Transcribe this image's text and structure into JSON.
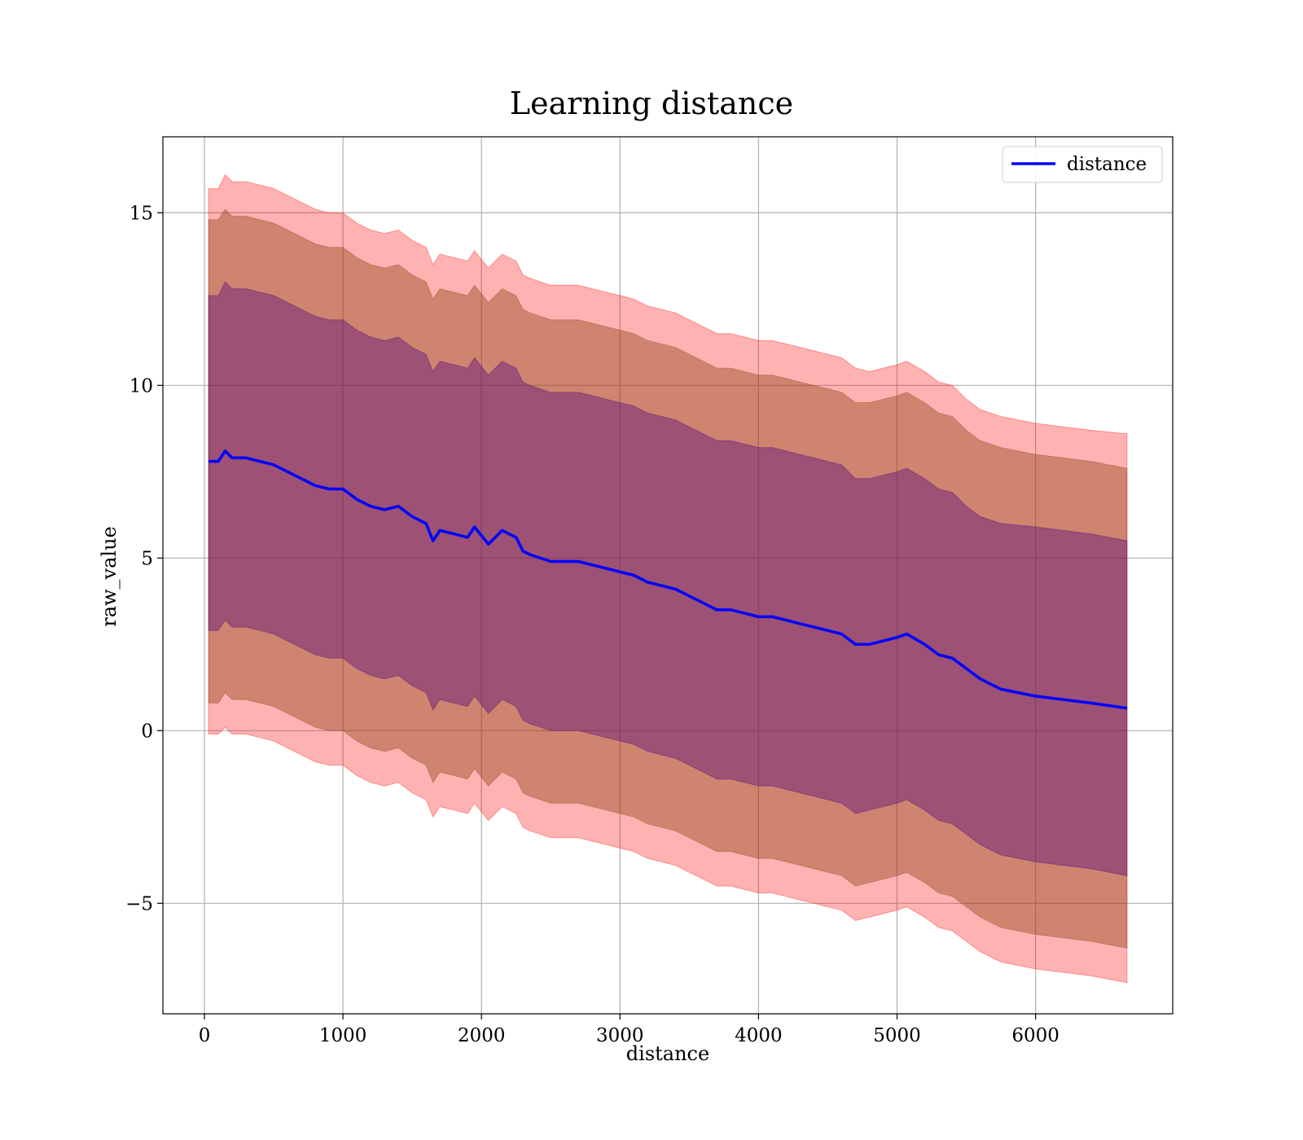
{
  "chart_data": {
    "type": "line",
    "title": "Learning distance",
    "xlabel": "distance",
    "ylabel": "raw_value",
    "xlim": [
      -300,
      6990
    ],
    "ylim": [
      -8.2,
      17.2
    ],
    "xticks": [
      0,
      1000,
      2000,
      3000,
      4000,
      5000,
      6000
    ],
    "xtick_labels": [
      "0",
      "1000",
      "2000",
      "3000",
      "4000",
      "5000",
      "6000"
    ],
    "yticks": [
      -5,
      0,
      5,
      10,
      15
    ],
    "ytick_labels": [
      "−5",
      "0",
      "5",
      "10",
      "15"
    ],
    "grid": true,
    "legend": {
      "position": "top-right",
      "entries": [
        "distance"
      ]
    },
    "colors": {
      "line": "#0000ff",
      "band_outer": "#ff0000",
      "band_middle": "#8b4513",
      "band_inner": "#4b0082",
      "grid": "#b0b0b0"
    },
    "x": [
      30,
      100,
      150,
      200,
      300,
      400,
      500,
      600,
      700,
      800,
      900,
      1000,
      1100,
      1200,
      1300,
      1400,
      1500,
      1600,
      1650,
      1700,
      1800,
      1900,
      1950,
      2050,
      2100,
      2150,
      2250,
      2300,
      2350,
      2500,
      2600,
      2700,
      2800,
      2900,
      3000,
      3100,
      3200,
      3300,
      3400,
      3500,
      3600,
      3700,
      3800,
      3900,
      4000,
      4100,
      4200,
      4300,
      4400,
      4500,
      4600,
      4700,
      4800,
      4900,
      5000,
      5070,
      5200,
      5300,
      5400,
      5500,
      5600,
      5750,
      6000,
      6200,
      6400,
      6660
    ],
    "series": [
      {
        "name": "distance",
        "values": [
          7.8,
          7.8,
          8.1,
          7.9,
          7.9,
          7.8,
          7.7,
          7.5,
          7.3,
          7.1,
          7.0,
          7.0,
          6.7,
          6.5,
          6.4,
          6.5,
          6.2,
          6.0,
          5.5,
          5.8,
          5.7,
          5.6,
          5.9,
          5.4,
          5.6,
          5.8,
          5.6,
          5.2,
          5.1,
          4.9,
          4.9,
          4.9,
          4.8,
          4.7,
          4.6,
          4.5,
          4.3,
          4.2,
          4.1,
          3.9,
          3.7,
          3.5,
          3.5,
          3.4,
          3.3,
          3.3,
          3.2,
          3.1,
          3.0,
          2.9,
          2.8,
          2.5,
          2.5,
          2.6,
          2.7,
          2.8,
          2.5,
          2.2,
          2.1,
          1.8,
          1.5,
          1.2,
          1.0,
          0.9,
          0.8,
          0.65
        ]
      }
    ],
    "bands": [
      {
        "label": "outer",
        "upper": [
          15.7,
          15.7,
          16.1,
          15.9,
          15.9,
          15.8,
          15.7,
          15.5,
          15.3,
          15.1,
          15.0,
          15.0,
          14.7,
          14.5,
          14.4,
          14.5,
          14.2,
          14.0,
          13.5,
          13.8,
          13.7,
          13.6,
          13.9,
          13.4,
          13.6,
          13.8,
          13.6,
          13.2,
          13.1,
          12.9,
          12.9,
          12.9,
          12.8,
          12.7,
          12.6,
          12.5,
          12.3,
          12.2,
          12.1,
          11.9,
          11.7,
          11.5,
          11.5,
          11.4,
          11.3,
          11.3,
          11.2,
          11.1,
          11.0,
          10.9,
          10.8,
          10.5,
          10.4,
          10.5,
          10.6,
          10.7,
          10.4,
          10.1,
          10.0,
          9.6,
          9.3,
          9.1,
          8.9,
          8.8,
          8.7,
          8.6
        ],
        "lower": [
          -0.1,
          -0.1,
          0.1,
          -0.1,
          -0.1,
          -0.2,
          -0.3,
          -0.5,
          -0.7,
          -0.9,
          -1.0,
          -1.0,
          -1.3,
          -1.5,
          -1.6,
          -1.5,
          -1.8,
          -2.0,
          -2.5,
          -2.2,
          -2.3,
          -2.4,
          -2.1,
          -2.6,
          -2.4,
          -2.2,
          -2.4,
          -2.8,
          -2.9,
          -3.1,
          -3.1,
          -3.1,
          -3.2,
          -3.3,
          -3.4,
          -3.5,
          -3.7,
          -3.8,
          -3.9,
          -4.1,
          -4.3,
          -4.5,
          -4.5,
          -4.6,
          -4.7,
          -4.7,
          -4.8,
          -4.9,
          -5.0,
          -5.1,
          -5.2,
          -5.5,
          -5.4,
          -5.3,
          -5.2,
          -5.1,
          -5.4,
          -5.7,
          -5.8,
          -6.1,
          -6.4,
          -6.7,
          -6.9,
          -7.0,
          -7.1,
          -7.3
        ]
      },
      {
        "label": "middle",
        "upper": [
          14.8,
          14.8,
          15.1,
          14.9,
          14.9,
          14.8,
          14.7,
          14.5,
          14.3,
          14.1,
          14.0,
          14.0,
          13.7,
          13.5,
          13.4,
          13.5,
          13.2,
          13.0,
          12.5,
          12.8,
          12.7,
          12.6,
          12.9,
          12.4,
          12.6,
          12.8,
          12.6,
          12.2,
          12.1,
          11.9,
          11.9,
          11.9,
          11.8,
          11.7,
          11.6,
          11.5,
          11.3,
          11.2,
          11.1,
          10.9,
          10.7,
          10.5,
          10.5,
          10.4,
          10.3,
          10.3,
          10.2,
          10.1,
          10.0,
          9.9,
          9.8,
          9.5,
          9.5,
          9.6,
          9.7,
          9.8,
          9.5,
          9.2,
          9.1,
          8.7,
          8.4,
          8.2,
          8.0,
          7.9,
          7.8,
          7.6
        ],
        "lower": [
          0.8,
          0.8,
          1.1,
          0.9,
          0.9,
          0.8,
          0.7,
          0.5,
          0.3,
          0.1,
          0.0,
          0.0,
          -0.3,
          -0.5,
          -0.6,
          -0.5,
          -0.8,
          -1.0,
          -1.5,
          -1.2,
          -1.3,
          -1.4,
          -1.1,
          -1.6,
          -1.4,
          -1.2,
          -1.4,
          -1.8,
          -1.9,
          -2.1,
          -2.1,
          -2.1,
          -2.2,
          -2.3,
          -2.4,
          -2.5,
          -2.7,
          -2.8,
          -2.9,
          -3.1,
          -3.3,
          -3.5,
          -3.5,
          -3.6,
          -3.7,
          -3.7,
          -3.8,
          -3.9,
          -4.0,
          -4.1,
          -4.2,
          -4.5,
          -4.4,
          -4.3,
          -4.2,
          -4.1,
          -4.4,
          -4.7,
          -4.8,
          -5.1,
          -5.4,
          -5.7,
          -5.9,
          -6.0,
          -6.1,
          -6.3
        ]
      },
      {
        "label": "inner",
        "upper": [
          12.6,
          12.6,
          13.0,
          12.8,
          12.8,
          12.7,
          12.6,
          12.4,
          12.2,
          12.0,
          11.9,
          11.9,
          11.6,
          11.4,
          11.3,
          11.4,
          11.1,
          10.9,
          10.4,
          10.7,
          10.6,
          10.5,
          10.8,
          10.3,
          10.5,
          10.7,
          10.5,
          10.1,
          10.0,
          9.8,
          9.8,
          9.8,
          9.7,
          9.6,
          9.5,
          9.4,
          9.2,
          9.1,
          9.0,
          8.8,
          8.6,
          8.4,
          8.4,
          8.3,
          8.2,
          8.2,
          8.1,
          8.0,
          7.9,
          7.8,
          7.7,
          7.3,
          7.3,
          7.4,
          7.5,
          7.6,
          7.3,
          7.0,
          6.9,
          6.5,
          6.2,
          6.0,
          5.9,
          5.8,
          5.7,
          5.5
        ],
        "lower": [
          2.9,
          2.9,
          3.2,
          3.0,
          3.0,
          2.9,
          2.8,
          2.6,
          2.4,
          2.2,
          2.1,
          2.1,
          1.8,
          1.6,
          1.5,
          1.6,
          1.3,
          1.1,
          0.6,
          0.9,
          0.8,
          0.7,
          1.0,
          0.5,
          0.7,
          0.9,
          0.7,
          0.3,
          0.2,
          0.0,
          0.0,
          0.0,
          -0.1,
          -0.2,
          -0.3,
          -0.4,
          -0.6,
          -0.7,
          -0.8,
          -1.0,
          -1.2,
          -1.4,
          -1.4,
          -1.5,
          -1.6,
          -1.6,
          -1.7,
          -1.8,
          -1.9,
          -2.0,
          -2.1,
          -2.4,
          -2.3,
          -2.2,
          -2.1,
          -2.0,
          -2.3,
          -2.6,
          -2.7,
          -3.0,
          -3.3,
          -3.6,
          -3.8,
          -3.9,
          -4.0,
          -4.2
        ]
      }
    ]
  }
}
